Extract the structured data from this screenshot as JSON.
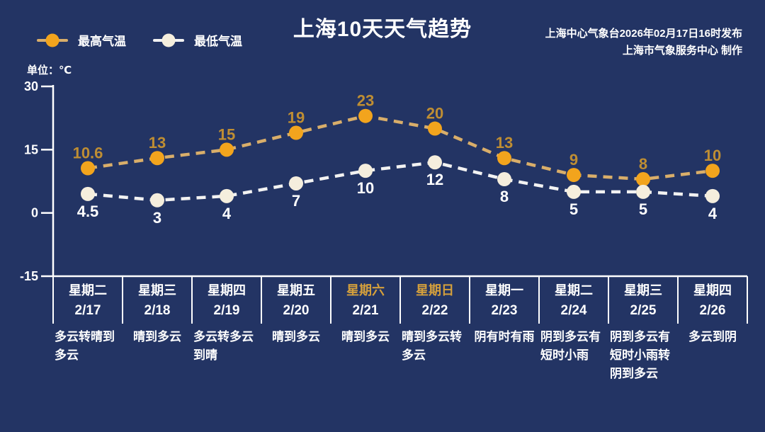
{
  "header": {
    "title": "上海10天天气趋势",
    "source_line1": "上海中心气象台2026年02月17日16时发布",
    "source_line2": "上海市气象服务中心 制作",
    "legend": [
      {
        "name": "最高气温",
        "line_color": "#d9ae6a",
        "dot_color": "#f2a41d"
      },
      {
        "name": "最低气温",
        "line_color": "#f2f2f2",
        "dot_color": "#f5eedd"
      }
    ]
  },
  "unit_label": "单位：℃",
  "chart_data": {
    "type": "line",
    "title": "上海10天天气趋势",
    "ylabel": "单位：℃",
    "ylim": [
      -15,
      30
    ],
    "yticks": [
      30,
      15,
      0,
      -15
    ],
    "grid": false,
    "line_style": "dashed",
    "legend_position": "top-left",
    "x": [
      "2/17",
      "2/18",
      "2/19",
      "2/20",
      "2/21",
      "2/22",
      "2/23",
      "2/24",
      "2/25",
      "2/26"
    ],
    "series": [
      {
        "name": "最高气温",
        "values": [
          10.6,
          13,
          15,
          19,
          23,
          20,
          13,
          9,
          8,
          10
        ],
        "line_color": "#d9ae6a",
        "marker_color": "#f2a41d",
        "label_color": "#bf8e33",
        "label_position": "above"
      },
      {
        "name": "最低气温",
        "values": [
          4.5,
          3,
          4,
          7,
          10,
          12,
          8,
          5,
          5,
          4
        ],
        "line_color": "#f2f2f2",
        "marker_color": "#f5eedd",
        "label_color": "#ffffff",
        "label_position": "below"
      }
    ]
  },
  "days": [
    {
      "weekday": "星期二",
      "date": "2/17",
      "desc": "多云转晴到多云",
      "weekend": false
    },
    {
      "weekday": "星期三",
      "date": "2/18",
      "desc": "晴到多云",
      "weekend": false
    },
    {
      "weekday": "星期四",
      "date": "2/19",
      "desc": "多云转多云到晴",
      "weekend": false
    },
    {
      "weekday": "星期五",
      "date": "2/20",
      "desc": "晴到多云",
      "weekend": false
    },
    {
      "weekday": "星期六",
      "date": "2/21",
      "desc": "晴到多云",
      "weekend": true
    },
    {
      "weekday": "星期日",
      "date": "2/22",
      "desc": "晴到多云转多云",
      "weekend": true
    },
    {
      "weekday": "星期一",
      "date": "2/23",
      "desc": "阴有时有雨",
      "weekend": false
    },
    {
      "weekday": "星期二",
      "date": "2/24",
      "desc": "阴到多云有短时小雨",
      "weekend": false
    },
    {
      "weekday": "星期三",
      "date": "2/25",
      "desc": "阴到多云有短时小雨转阴到多云",
      "weekend": false
    },
    {
      "weekday": "星期四",
      "date": "2/26",
      "desc": "多云到阴",
      "weekend": false
    }
  ],
  "colors": {
    "background": "#233464",
    "axis": "#ffffff",
    "text": "#ffffff",
    "weekend_label": "#d5a03c",
    "high_marker": "#f2a41d",
    "high_line": "#d9ae6a",
    "high_label": "#bf8e33",
    "low_marker": "#f5eedd",
    "low_line": "#f2f2f2"
  }
}
